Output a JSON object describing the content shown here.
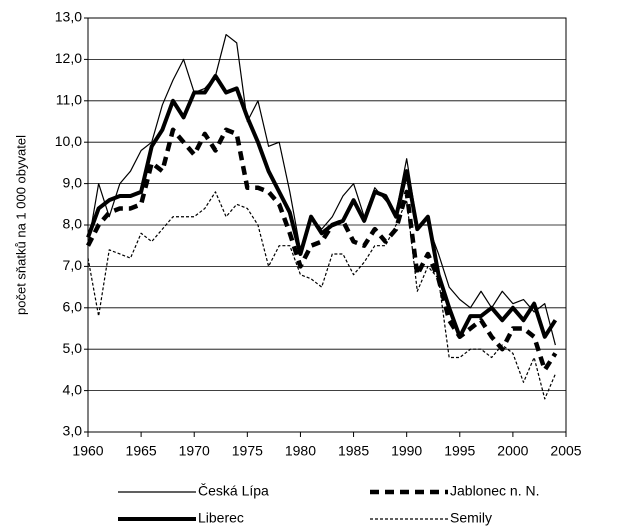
{
  "chart_data": {
    "type": "line",
    "ylabel": "počet sňatků na 1 000 obyvatel",
    "x": [
      1960,
      1961,
      1962,
      1963,
      1964,
      1965,
      1966,
      1967,
      1968,
      1969,
      1970,
      1971,
      1972,
      1973,
      1974,
      1975,
      1976,
      1977,
      1978,
      1979,
      1980,
      1981,
      1982,
      1983,
      1984,
      1985,
      1986,
      1987,
      1988,
      1989,
      1990,
      1991,
      1992,
      1993,
      1994,
      1995,
      1996,
      1997,
      1998,
      1999,
      2000,
      2001,
      2002,
      2003,
      2004
    ],
    "xlim": [
      1960,
      2005
    ],
    "xticks": [
      1960,
      1965,
      1970,
      1975,
      1980,
      1985,
      1990,
      1995,
      2000,
      2005
    ],
    "ylim": [
      3,
      13
    ],
    "yticks": [
      {
        "value": 3,
        "label": "3,0"
      },
      {
        "value": 4,
        "label": "4,0"
      },
      {
        "value": 5,
        "label": "5,0"
      },
      {
        "value": 6,
        "label": "6,0"
      },
      {
        "value": 7,
        "label": "7,0"
      },
      {
        "value": 8,
        "label": "8,0"
      },
      {
        "value": 9,
        "label": "9,0"
      },
      {
        "value": 10,
        "label": "10,0"
      },
      {
        "value": 11,
        "label": "11,0"
      },
      {
        "value": 12,
        "label": "12,0"
      },
      {
        "value": 13,
        "label": "13,0"
      }
    ],
    "grid": true,
    "legend": "bottom",
    "series": [
      {
        "name": "Česká Lípa",
        "color": "#000000",
        "style": "solid-thin",
        "values": [
          7.5,
          9.0,
          8.2,
          9.0,
          9.3,
          9.8,
          10.0,
          10.9,
          11.5,
          12.0,
          11.2,
          11.3,
          11.6,
          12.6,
          12.4,
          10.5,
          11.0,
          9.9,
          10.0,
          8.8,
          7.4,
          8.2,
          7.9,
          8.2,
          8.7,
          9.0,
          8.2,
          8.9,
          8.6,
          8.3,
          9.6,
          8.0,
          8.0,
          7.3,
          6.5,
          6.2,
          6.0,
          6.4,
          6.0,
          6.4,
          6.1,
          6.2,
          5.9,
          6.1,
          5.1
        ]
      },
      {
        "name": "Jablonec n. N.",
        "color": "#000000",
        "style": "dashed-thick",
        "values": [
          7.5,
          8.0,
          8.3,
          8.4,
          8.4,
          8.5,
          9.5,
          9.3,
          10.3,
          10.0,
          9.7,
          10.2,
          9.8,
          10.3,
          10.2,
          8.9,
          8.9,
          8.8,
          8.5,
          7.8,
          7.0,
          7.5,
          7.6,
          8.0,
          8.1,
          7.6,
          7.5,
          7.9,
          7.6,
          7.9,
          8.8,
          6.8,
          7.3,
          6.7,
          5.7,
          5.3,
          5.5,
          5.7,
          5.3,
          5.0,
          5.5,
          5.5,
          5.3,
          4.5,
          4.9
        ]
      },
      {
        "name": "Liberec",
        "color": "#000000",
        "style": "solid-thick",
        "values": [
          7.7,
          8.4,
          8.6,
          8.7,
          8.7,
          8.8,
          9.9,
          10.3,
          11.0,
          10.6,
          11.2,
          11.2,
          11.6,
          11.2,
          11.3,
          10.6,
          10.0,
          9.3,
          8.8,
          8.3,
          7.3,
          8.2,
          7.8,
          8.0,
          8.1,
          8.6,
          8.1,
          8.8,
          8.7,
          8.2,
          9.3,
          7.9,
          8.2,
          6.8,
          6.0,
          5.3,
          5.8,
          5.8,
          6.0,
          5.7,
          6.0,
          5.7,
          6.1,
          5.3,
          5.7
        ]
      },
      {
        "name": "Semily",
        "color": "#000000",
        "style": "dotted-thin",
        "values": [
          7.2,
          5.8,
          7.4,
          7.3,
          7.2,
          7.8,
          7.6,
          7.9,
          8.2,
          8.2,
          8.2,
          8.4,
          8.8,
          8.2,
          8.5,
          8.4,
          8.0,
          7.0,
          7.5,
          7.5,
          6.8,
          6.7,
          6.5,
          7.3,
          7.3,
          6.8,
          7.1,
          7.5,
          7.5,
          8.0,
          8.6,
          6.4,
          7.0,
          6.7,
          4.8,
          4.8,
          5.0,
          5.0,
          4.8,
          5.1,
          4.9,
          4.2,
          4.8,
          3.8,
          4.4
        ]
      }
    ]
  }
}
